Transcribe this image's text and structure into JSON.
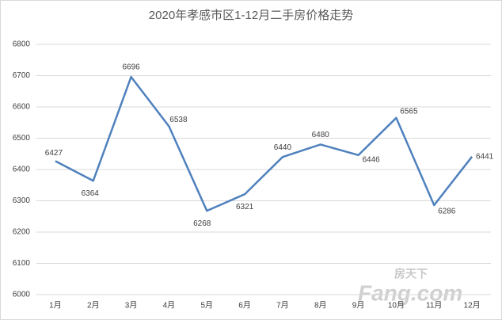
{
  "chart_data": {
    "type": "line",
    "title": "2020年孝感市区1-12月二手房价格走势",
    "categories": [
      "1月",
      "2月",
      "3月",
      "4月",
      "5月",
      "6月",
      "7月",
      "8月",
      "9月",
      "10月",
      "11月",
      "12月"
    ],
    "series": [
      {
        "name": "二手房价格",
        "color": "#4f81bd",
        "values": [
          6427,
          6364,
          6696,
          6538,
          6268,
          6321,
          6440,
          6480,
          6446,
          6565,
          6286,
          6441
        ]
      }
    ],
    "ylim": [
      6000,
      6800
    ],
    "yticks": [
      6000,
      6100,
      6200,
      6300,
      6400,
      6500,
      6600,
      6700,
      6800
    ],
    "grid": true,
    "watermark": {
      "brand": "房天下",
      "site": "Fang.com"
    }
  }
}
